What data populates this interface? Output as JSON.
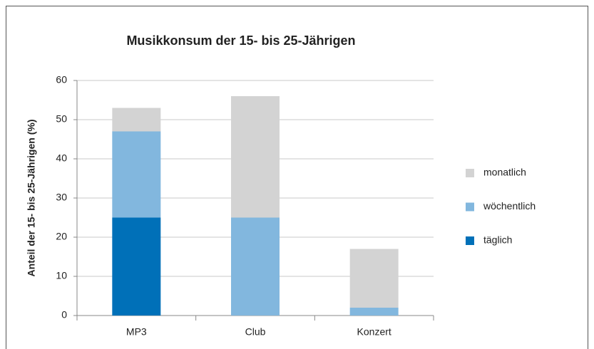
{
  "chart_data": {
    "type": "bar",
    "stacked": true,
    "title": "Musikkonsum der 15- bis 25-Jährigen",
    "y_label": "Anteil der 15- bis 25-Jährigen (%)",
    "categories": [
      "MP3",
      "Club",
      "Konzert"
    ],
    "series": [
      {
        "name": "täglich",
        "color": "#0070b8",
        "values": [
          25,
          0,
          0
        ]
      },
      {
        "name": "wöchentlich",
        "color": "#82b7de",
        "values": [
          22,
          25,
          2
        ]
      },
      {
        "name": "monatlich",
        "color": "#d3d3d3",
        "values": [
          6,
          31,
          15
        ]
      }
    ],
    "ylim": [
      0,
      60
    ],
    "yticks": [
      0,
      10,
      20,
      30,
      40,
      50,
      60
    ],
    "grid": true,
    "legend": "right"
  }
}
